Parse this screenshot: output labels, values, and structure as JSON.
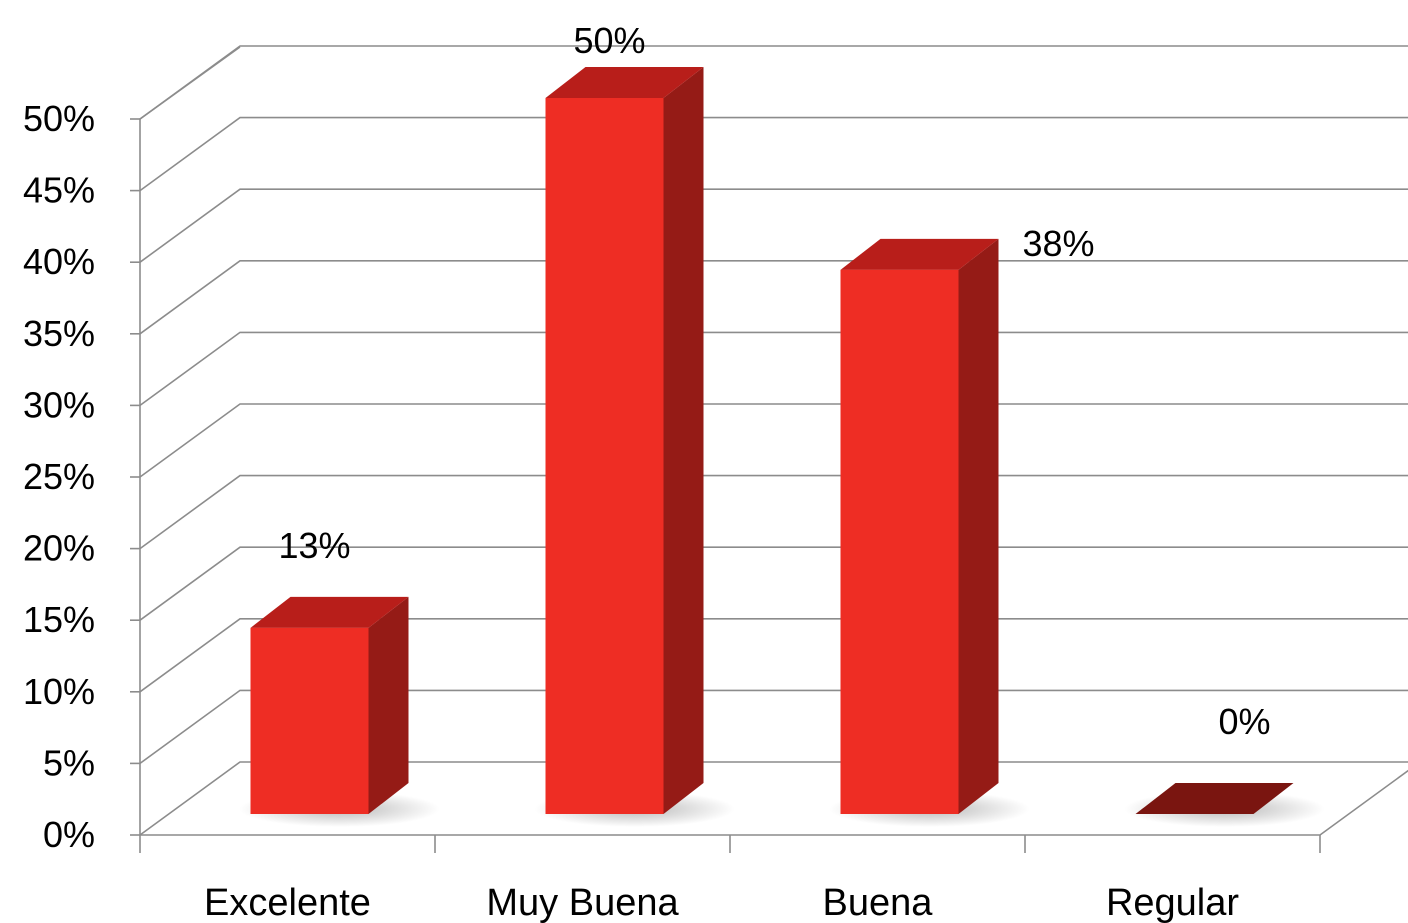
{
  "chart_data": {
    "type": "bar",
    "categories": [
      "Excelente",
      "Muy Buena",
      "Buena",
      "Regular"
    ],
    "values": [
      13,
      50,
      38,
      0
    ],
    "data_labels": [
      "13%",
      "50%",
      "38%",
      "0%"
    ],
    "yticks": [
      "0%",
      "5%",
      "10%",
      "15%",
      "20%",
      "25%",
      "30%",
      "35%",
      "40%",
      "45%",
      "50%"
    ],
    "ylim": [
      0,
      50
    ],
    "title": "",
    "xlabel": "",
    "ylabel": "",
    "grid": true,
    "three_d": true,
    "colors": {
      "bar_front": "#ee2d24",
      "bar_top": "#b81e1a",
      "bar_side": "#951b16",
      "bar_zero": "#7a1510",
      "grid": "#8c8c8c"
    }
  }
}
